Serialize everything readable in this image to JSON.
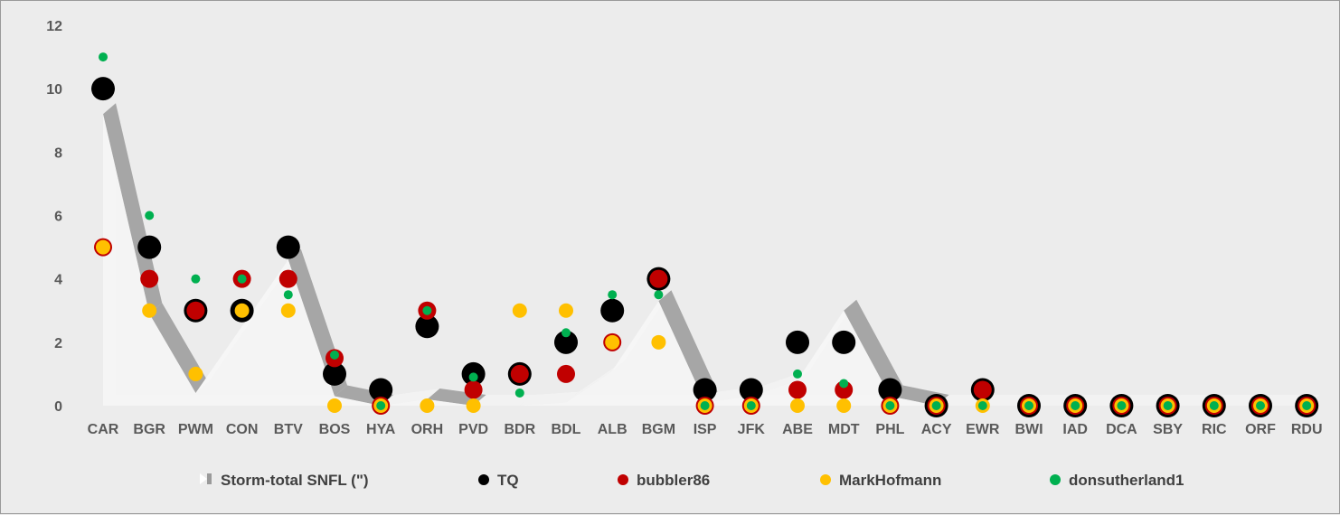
{
  "chart_data": {
    "type": "scatter",
    "title": "",
    "xlabel": "",
    "ylabel": "",
    "ylim": [
      0,
      12
    ],
    "yticks": [
      0,
      2,
      4,
      6,
      8,
      10,
      12
    ],
    "grid": false,
    "legend_position": "bottom",
    "categories": [
      "CAR",
      "BGR",
      "PWM",
      "CON",
      "BTV",
      "BOS",
      "HYA",
      "ORH",
      "PVD",
      "BDR",
      "BDL",
      "ALB",
      "BGM",
      "ISP",
      "JFK",
      "ABE",
      "MDT",
      "PHL",
      "ACY",
      "EWR",
      "BWI",
      "IAD",
      "DCA",
      "SBY",
      "RIC",
      "ORF",
      "RDU"
    ],
    "series": [
      {
        "name": "Storm-total SNFL (\")",
        "kind": "area-3d",
        "color": "#f7f7f7",
        "shadow_color": "#a6a6a6",
        "values": [
          9.2,
          2.9,
          0.4,
          2.5,
          4.6,
          0.3,
          0,
          0.2,
          0,
          0,
          0.1,
          1.1,
          3.3,
          0.1,
          0.3,
          0.8,
          3.0,
          0.3,
          0,
          0,
          0,
          0,
          0,
          0,
          0,
          0,
          0
        ]
      },
      {
        "name": "TQ",
        "kind": "marker",
        "color": "#000000",
        "radius": 13,
        "values": [
          10,
          5,
          3,
          3,
          5,
          1,
          0.5,
          2.5,
          1,
          1,
          2,
          3,
          4,
          0.5,
          0.5,
          2,
          2,
          0.5,
          0,
          0.5,
          0,
          0,
          0,
          0,
          0,
          0,
          0
        ]
      },
      {
        "name": "bubbler86",
        "kind": "marker",
        "color": "#c00000",
        "radius": 10,
        "values": [
          5,
          4,
          3,
          4,
          4,
          1.5,
          0,
          3,
          0.5,
          1,
          1,
          2,
          4,
          0,
          0,
          0.5,
          0.5,
          0,
          0,
          0.5,
          0,
          0,
          0,
          0,
          0,
          0,
          0
        ]
      },
      {
        "name": "MarkHofmann",
        "kind": "marker",
        "color": "#ffc000",
        "radius": 8,
        "values": [
          5,
          3,
          1,
          3,
          3,
          0,
          0,
          0,
          0,
          3,
          3,
          2,
          2,
          0,
          0,
          0,
          0,
          0,
          0,
          0,
          0,
          0,
          0,
          0,
          0,
          0,
          0
        ]
      },
      {
        "name": "donsutherland1",
        "kind": "marker",
        "color": "#00b050",
        "radius": 5,
        "values": [
          11,
          6,
          4,
          4,
          3.5,
          1.6,
          0,
          3,
          0.9,
          0.4,
          2.3,
          3.5,
          3.5,
          0,
          0,
          1,
          0.7,
          0,
          0,
          0,
          0,
          0,
          0,
          0,
          0,
          0,
          0
        ]
      }
    ]
  }
}
